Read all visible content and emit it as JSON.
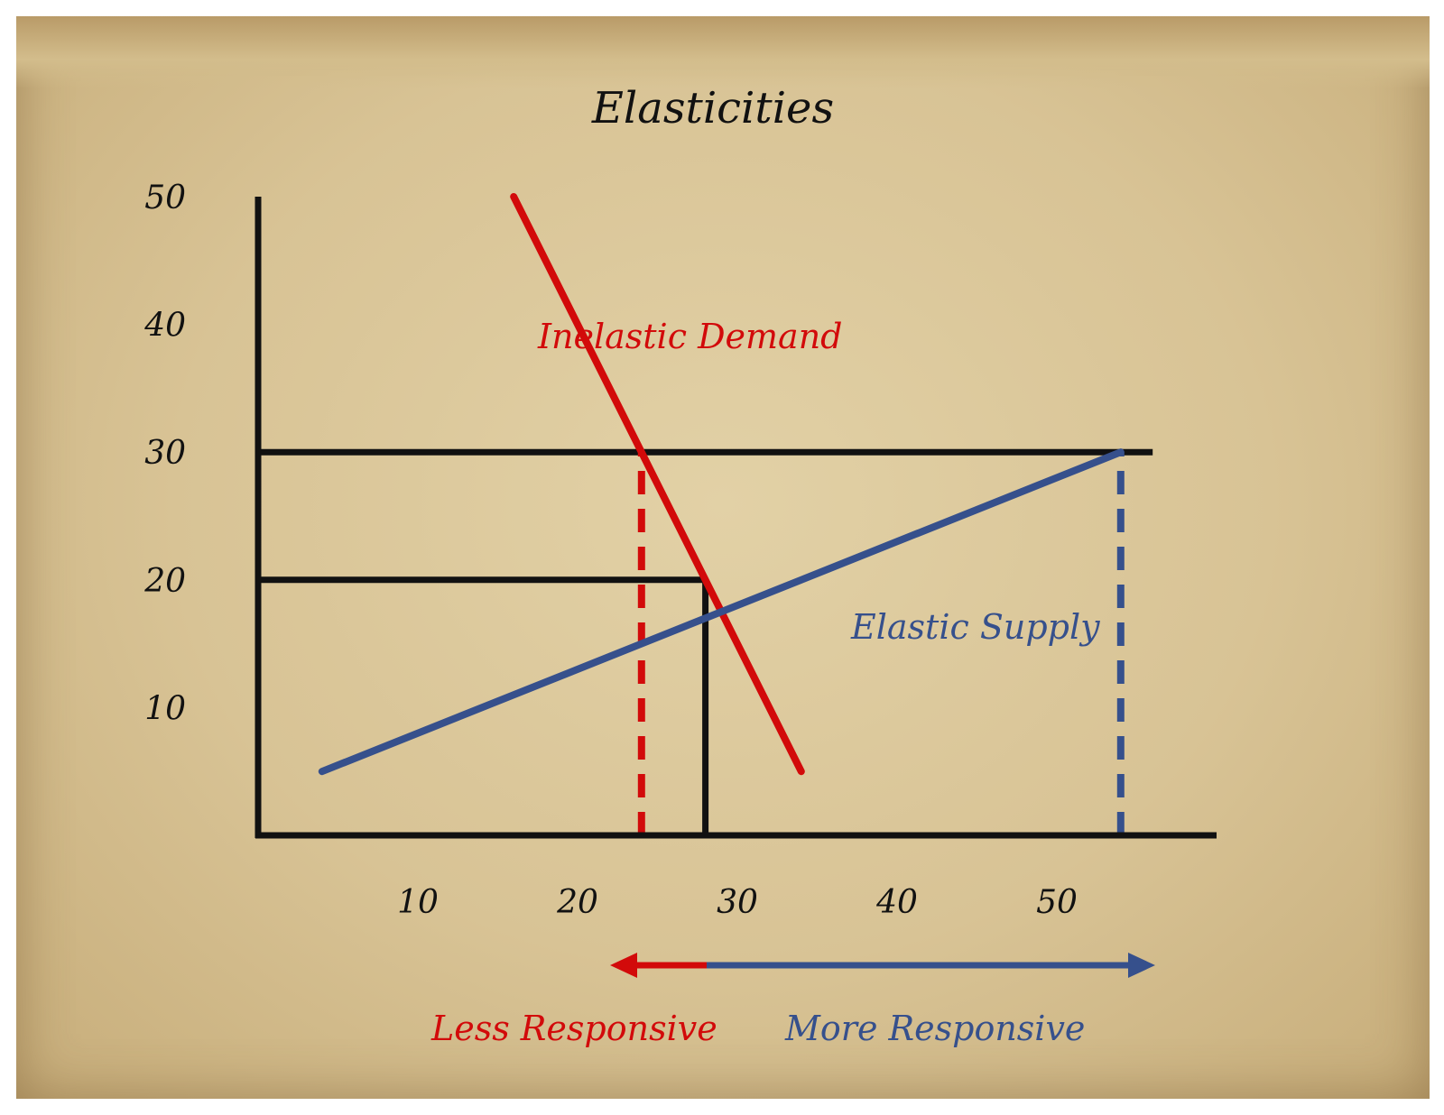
{
  "chart_data": {
    "type": "line",
    "title": "Elasticities",
    "xlabel": "",
    "ylabel": "",
    "xlim": [
      0,
      60
    ],
    "ylim": [
      0,
      50
    ],
    "x_ticks": [
      "10",
      "20",
      "30",
      "40",
      "50"
    ],
    "y_ticks": [
      "10",
      "20",
      "30",
      "40",
      "50"
    ],
    "grid": false,
    "series": [
      {
        "name": "Inelastic Demand",
        "color": "#d20a0a",
        "points": [
          [
            16,
            50
          ],
          [
            34,
            5
          ]
        ]
      },
      {
        "name": "Elastic Supply",
        "color": "#36508c",
        "points": [
          [
            4,
            5
          ],
          [
            54,
            30
          ]
        ]
      }
    ],
    "reference_lines": [
      {
        "kind": "horizontal",
        "y": 30,
        "x_from": 0,
        "x_to": 56,
        "color": "#111111",
        "style": "solid"
      },
      {
        "kind": "horizontal",
        "y": 20,
        "x_from": 0,
        "x_to": 28,
        "color": "#111111",
        "style": "solid"
      },
      {
        "kind": "vertical",
        "x": 28,
        "y_from": 0,
        "y_to": 20,
        "color": "#111111",
        "style": "solid"
      },
      {
        "kind": "vertical",
        "x": 24,
        "y_from": 0,
        "y_to": 30,
        "color": "#d20a0a",
        "style": "dashed"
      },
      {
        "kind": "vertical",
        "x": 54,
        "y_from": 0,
        "y_to": 30,
        "color": "#36508c",
        "style": "dashed"
      }
    ],
    "responsiveness_arrow": {
      "less_label": "Less Responsive",
      "more_label": "More Responsive",
      "less_color": "#d20a0a",
      "more_color": "#36508c"
    }
  }
}
